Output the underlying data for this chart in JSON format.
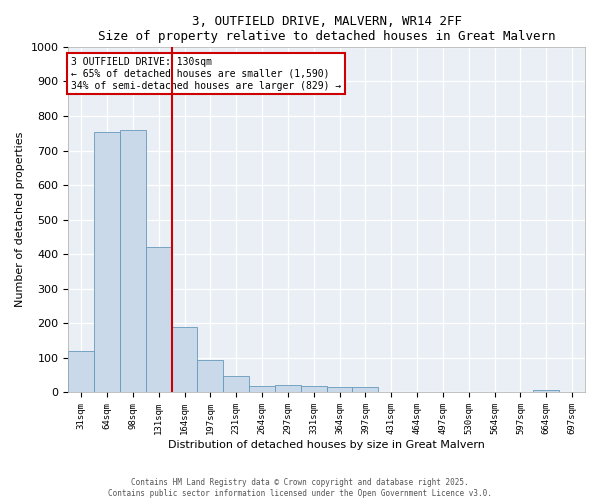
{
  "title": "3, OUTFIELD DRIVE, MALVERN, WR14 2FF",
  "subtitle": "Size of property relative to detached houses in Great Malvern",
  "xlabel": "Distribution of detached houses by size in Great Malvern",
  "ylabel": "Number of detached properties",
  "bar_labels": [
    "31sqm",
    "64sqm",
    "98sqm",
    "131sqm",
    "164sqm",
    "197sqm",
    "231sqm",
    "264sqm",
    "297sqm",
    "331sqm",
    "364sqm",
    "397sqm",
    "431sqm",
    "464sqm",
    "497sqm",
    "530sqm",
    "564sqm",
    "597sqm",
    "664sqm",
    "697sqm"
  ],
  "bar_values": [
    120,
    755,
    760,
    420,
    190,
    95,
    47,
    20,
    22,
    20,
    15,
    15,
    0,
    0,
    0,
    0,
    0,
    0,
    8,
    0
  ],
  "bar_color": "#c9d9ea",
  "bar_edgecolor": "#6699bb",
  "ylim": [
    0,
    1000
  ],
  "yticks": [
    0,
    100,
    200,
    300,
    400,
    500,
    600,
    700,
    800,
    900,
    1000
  ],
  "redline_index": 3,
  "annotation_text": "3 OUTFIELD DRIVE: 130sqm\n← 65% of detached houses are smaller (1,590)\n34% of semi-detached houses are larger (829) →",
  "annotation_color": "#cc0000",
  "background_color": "#eaeff5",
  "footer_line1": "Contains HM Land Registry data © Crown copyright and database right 2025.",
  "footer_line2": "Contains public sector information licensed under the Open Government Licence v3.0."
}
